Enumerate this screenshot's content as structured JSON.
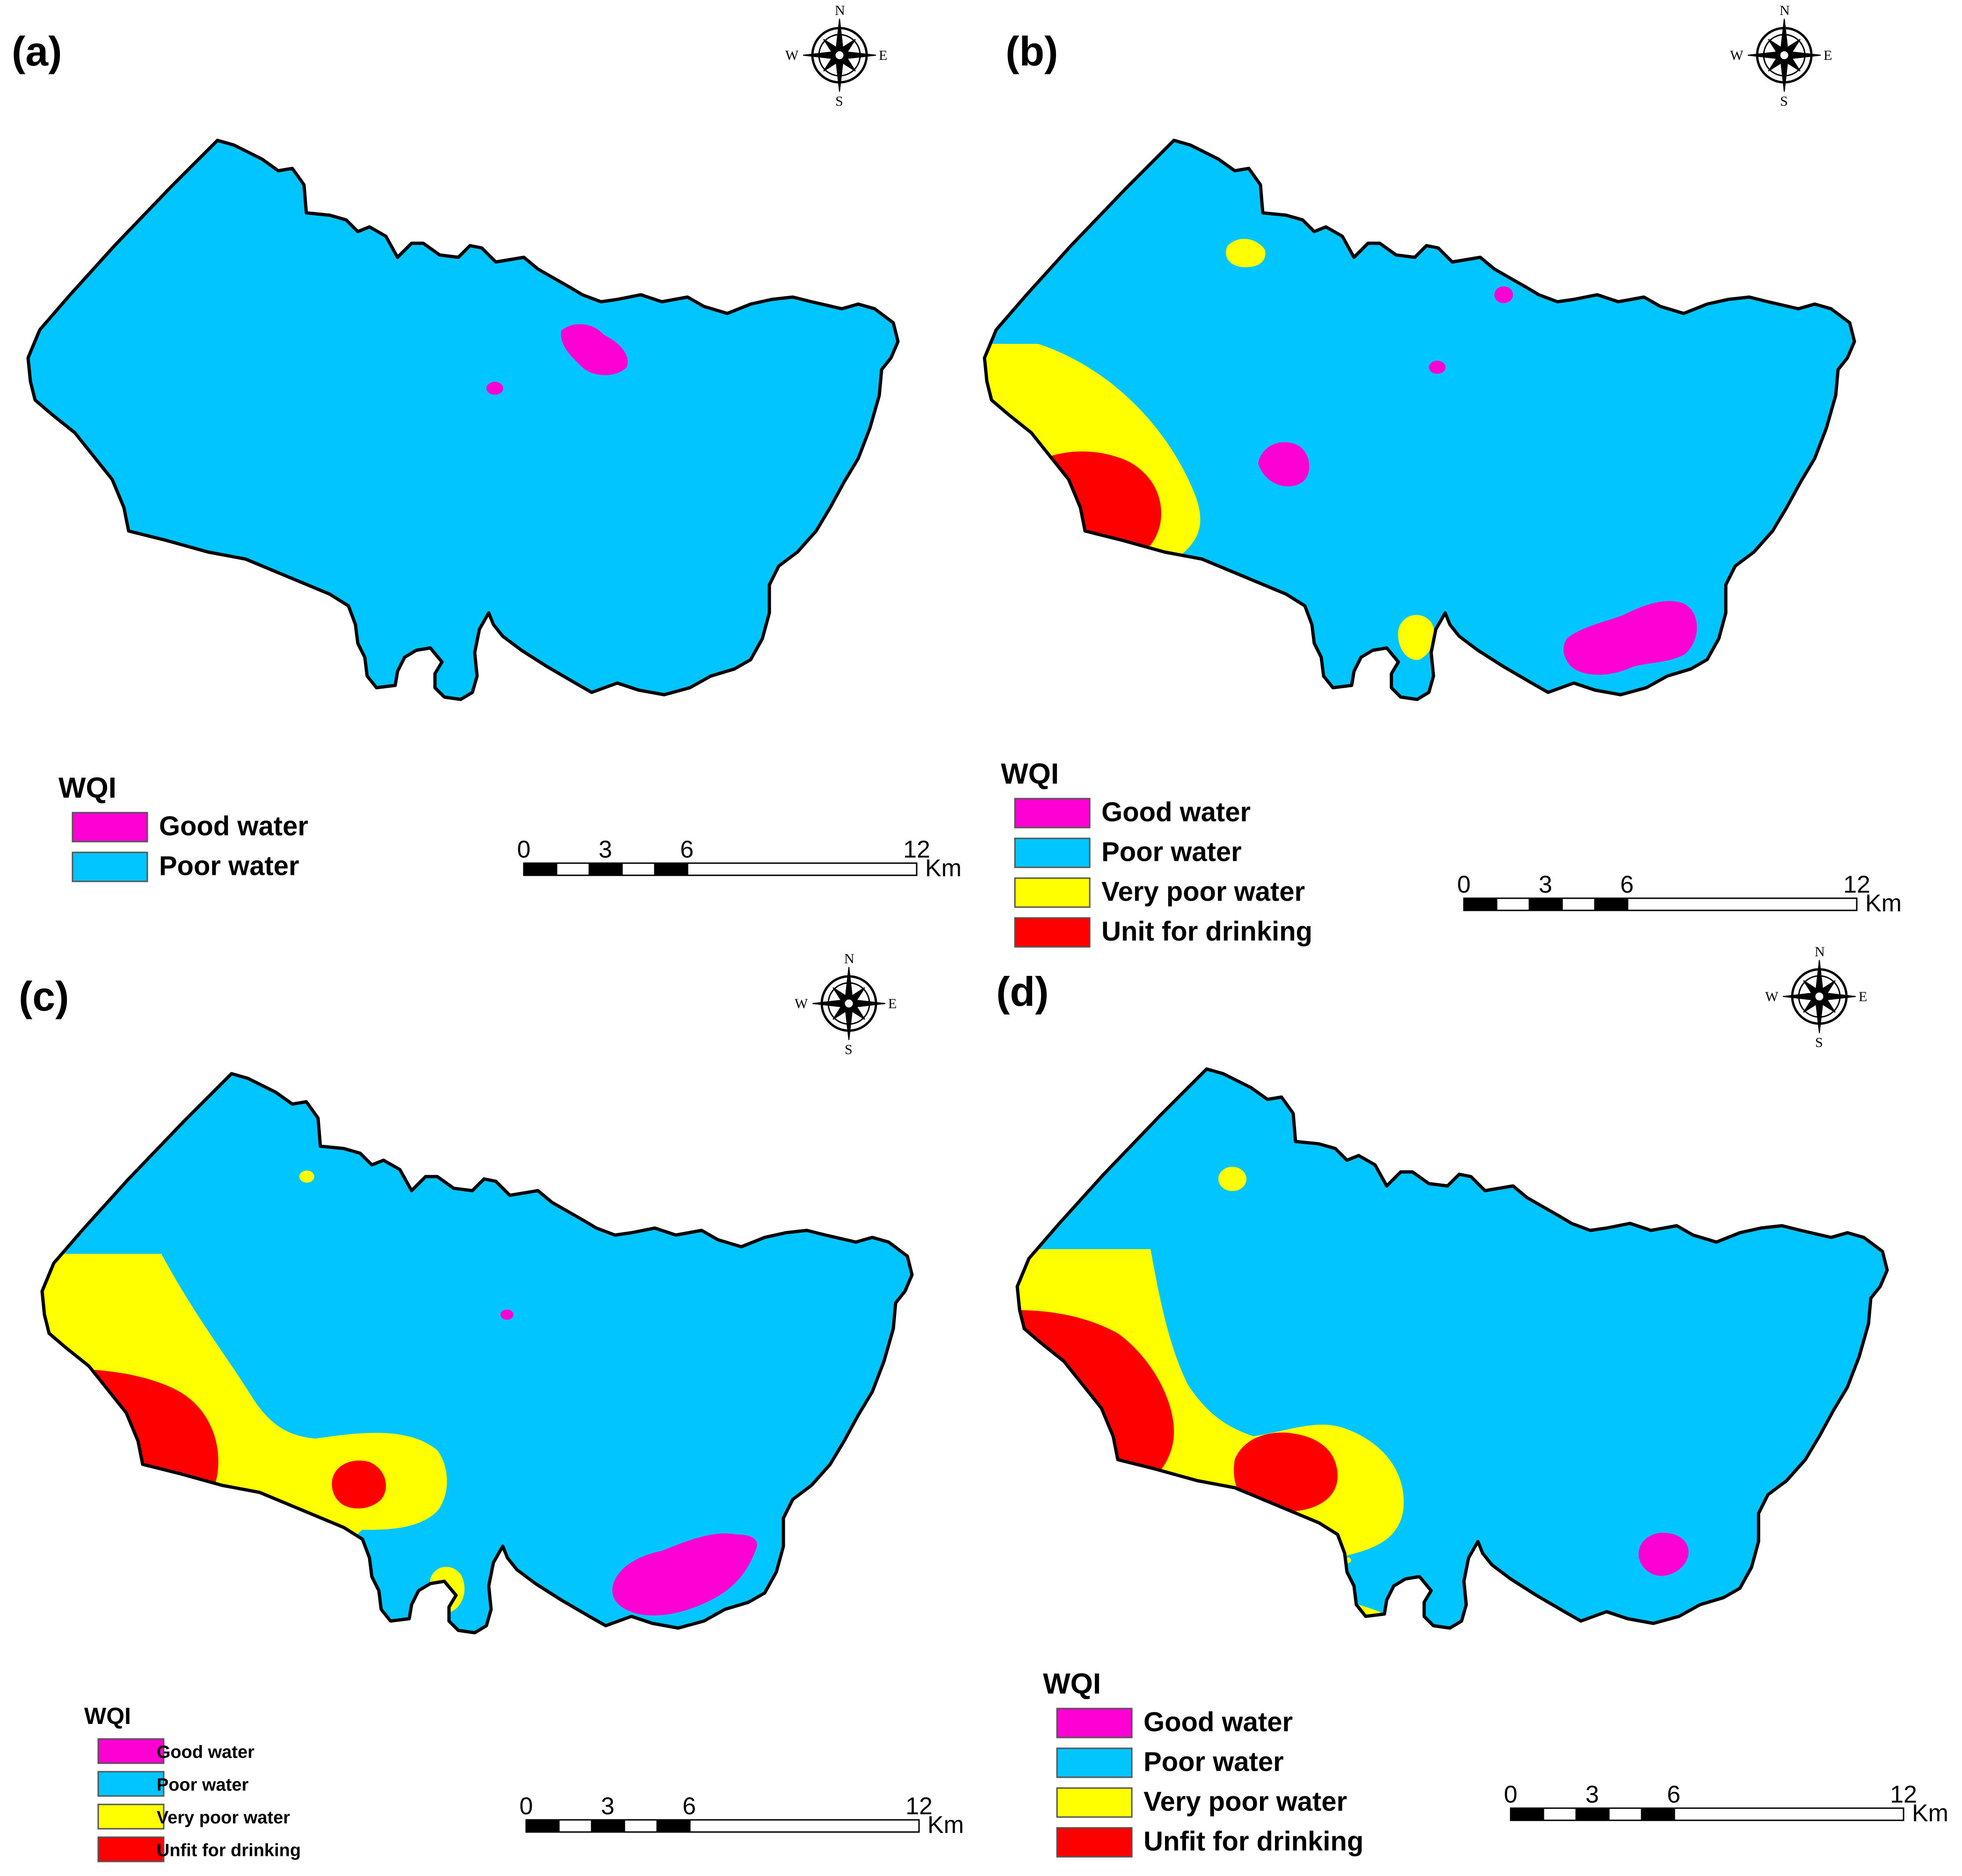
{
  "colors": {
    "good": "#ff00d4",
    "poor": "#00c5ff",
    "very_poor": "#ffff00",
    "unfit": "#ff0000",
    "outline": "#000000"
  },
  "compass_letters": {
    "n": "N",
    "s": "S",
    "e": "E",
    "w": "W"
  },
  "panels": [
    {
      "label": "(a)",
      "legend": {
        "title": "WQI",
        "items": [
          {
            "label": "Good water",
            "color": "#ff00d4"
          },
          {
            "label": "Poor water",
            "color": "#00c5ff"
          }
        ]
      },
      "scale": {
        "ticks": [
          "0",
          "3",
          "6",
          "12"
        ],
        "unit": "Km"
      }
    },
    {
      "label": "(b)",
      "legend": {
        "title": "WQI",
        "items": [
          {
            "label": "Good water",
            "color": "#ff00d4"
          },
          {
            "label": "Poor water",
            "color": "#00c5ff"
          },
          {
            "label": "Very poor water",
            "color": "#ffff00"
          },
          {
            "label": "Unit for drinking",
            "color": "#ff0000"
          }
        ]
      },
      "scale": {
        "ticks": [
          "0",
          "3",
          "6",
          "12"
        ],
        "unit": "Km"
      }
    },
    {
      "label": "(c)",
      "legend": {
        "title": "WQI",
        "items": [
          {
            "label": "Good water",
            "color": "#ff00d4"
          },
          {
            "label": "Poor water",
            "color": "#00c5ff"
          },
          {
            "label": "Very poor water",
            "color": "#ffff00"
          },
          {
            "label": "Unfit for drinking",
            "color": "#ff0000"
          }
        ]
      },
      "scale": {
        "ticks": [
          "0",
          "3",
          "6",
          "12"
        ],
        "unit": "Km"
      }
    },
    {
      "label": "(d)",
      "legend": {
        "title": "WQI",
        "items": [
          {
            "label": "Good water",
            "color": "#ff00d4"
          },
          {
            "label": "Poor water",
            "color": "#00c5ff"
          },
          {
            "label": "Very poor water",
            "color": "#ffff00"
          },
          {
            "label": "Unfit for drinking",
            "color": "#ff0000"
          }
        ]
      },
      "scale": {
        "ticks": [
          "0",
          "3",
          "6",
          "12"
        ],
        "unit": "Km"
      }
    }
  ]
}
